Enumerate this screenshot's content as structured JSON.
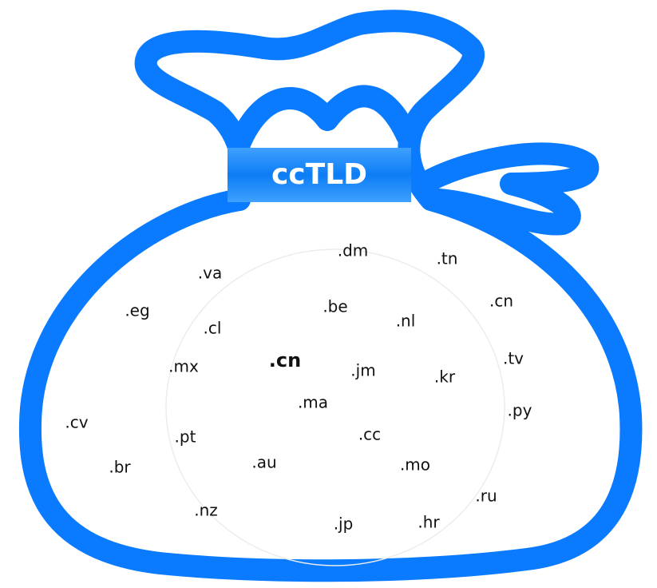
{
  "label": "ccTLD",
  "domains": [
    ".dm",
    ".tn",
    ".va",
    ".cn",
    ".eg",
    ".be",
    ".nl",
    ".cl",
    ".mx",
    ".cn",
    ".jm",
    ".kr",
    ".tv",
    ".ma",
    ".py",
    ".cv",
    ".pt",
    ".cc",
    ".au",
    ".br",
    ".mo",
    ".ru",
    ".nz",
    ".jp",
    ".hr"
  ]
}
